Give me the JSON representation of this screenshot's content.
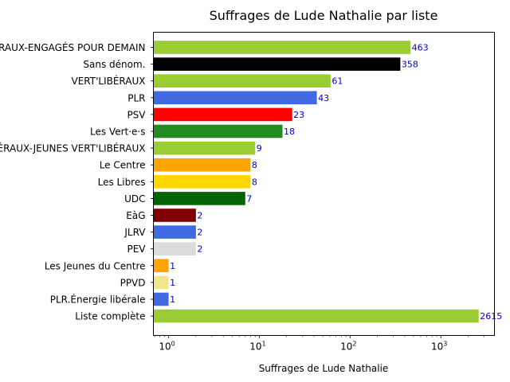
{
  "chart_data": {
    "type": "bar",
    "orientation": "horizontal",
    "title": "Suffrages de Lude Nathalie par liste",
    "xlabel": "Suffrages de Lude Nathalie",
    "ylabel": "",
    "xscale": "log",
    "xlim": [
      0.68,
      3900
    ],
    "x_ticks": [
      {
        "base": "10",
        "exp": "0",
        "value": 1
      },
      {
        "base": "10",
        "exp": "1",
        "value": 10
      },
      {
        "base": "10",
        "exp": "2",
        "value": 100
      },
      {
        "base": "10",
        "exp": "3",
        "value": 1000
      }
    ],
    "grid": false,
    "categories": [
      "VERT'LIBÉRAUX-ENGAGÉS POUR DEMAIN",
      "Sans dénom.",
      "VERT'LIBÉRAUX",
      "PLR",
      "PSV",
      "Les Vert·e·s",
      "VERT'LIBÉRAUX-JEUNES VERT'LIBÉRAUX",
      "Le Centre",
      "Les Libres",
      "UDC",
      "EàG",
      "JLRV",
      "PEV",
      "Les Jeunes du Centre",
      "PPVD",
      "PLR.Énergie libérale",
      "Liste complète"
    ],
    "values": [
      463,
      358,
      61,
      43,
      23,
      18,
      9,
      8,
      8,
      7,
      2,
      2,
      2,
      1,
      1,
      1,
      2615
    ],
    "colors": [
      "#9acd32",
      "#000000",
      "#9acd32",
      "#4169e1",
      "#ff0000",
      "#228b22",
      "#9acd32",
      "#ffa500",
      "#ffd700",
      "#006400",
      "#800000",
      "#4169e1",
      "#dcdcdc",
      "#ffa500",
      "#f0e68c",
      "#4169e1",
      "#9acd32"
    ],
    "label_color": "#0000cd"
  }
}
